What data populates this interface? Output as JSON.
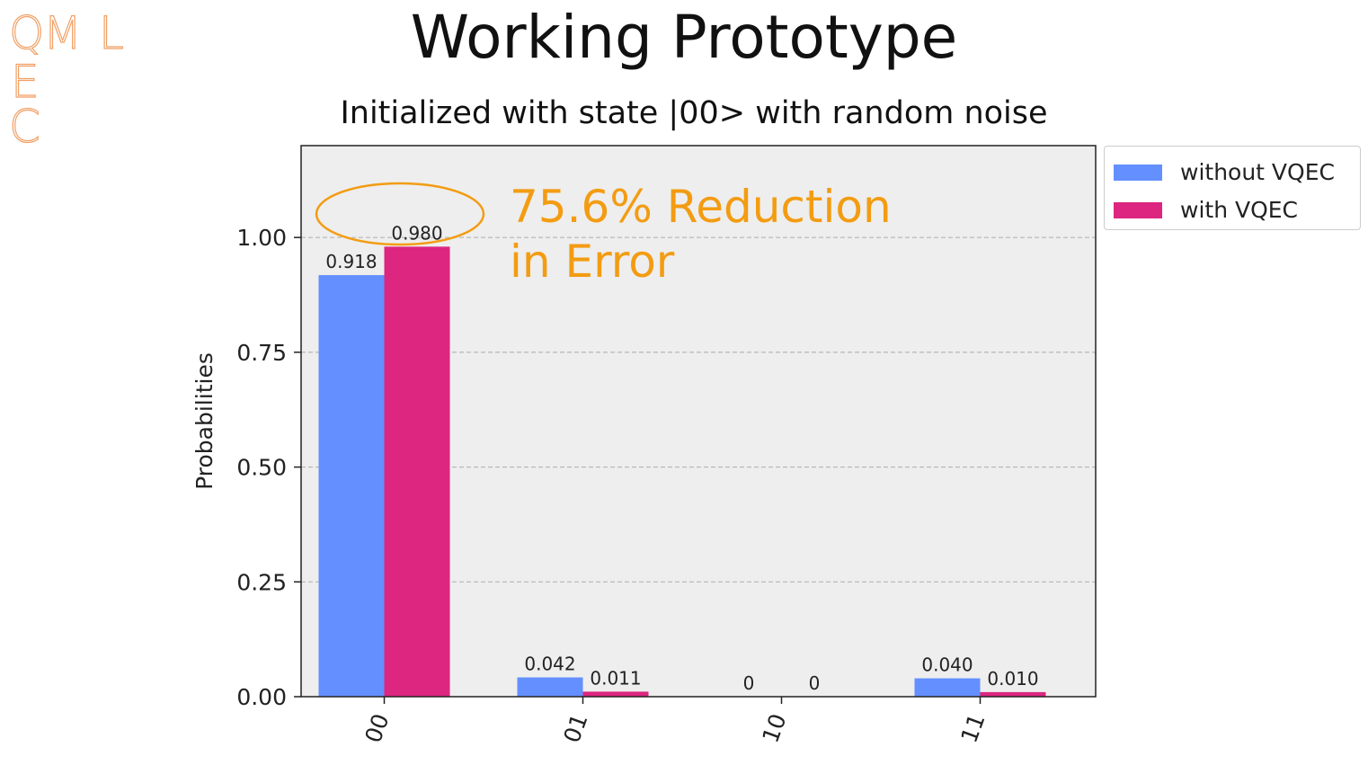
{
  "logo": {
    "letters": [
      "Q",
      "M",
      "L",
      "E",
      "C"
    ],
    "color": "#f0a066"
  },
  "slide": {
    "title": "Working Prototype",
    "subtitle": "Initialized with state |00> with random noise"
  },
  "annotation": {
    "line1": "75.6% Reduction",
    "line2": "in Error",
    "color": "#f39c12"
  },
  "chart_data": {
    "type": "bar",
    "categories": [
      "00",
      "01",
      "10",
      "11"
    ],
    "series": [
      {
        "name": "without VQEC",
        "values": [
          0.918,
          0.042,
          0,
          0.04
        ],
        "labels": [
          "0.918",
          "0.042",
          "0",
          "0.040"
        ],
        "color": "#648fff"
      },
      {
        "name": "with VQEC",
        "values": [
          0.98,
          0.011,
          0,
          0.01
        ],
        "labels": [
          "0.980",
          "0.011",
          "0",
          "0.010"
        ],
        "color": "#dc267f"
      }
    ],
    "xlabel": "",
    "ylabel": "Probabilities",
    "ylim": [
      0,
      1.2
    ],
    "yticks": [
      0,
      0.25,
      0.5,
      0.75,
      1.0
    ],
    "ytick_labels": [
      "0.00",
      "0.25",
      "0.50",
      "0.75",
      "1.00"
    ],
    "grid": "horizontal dashed",
    "legend_position": "outside top-right",
    "highlight": "ellipse around bar labels of category 00",
    "plot_background": "#eeeeee"
  }
}
